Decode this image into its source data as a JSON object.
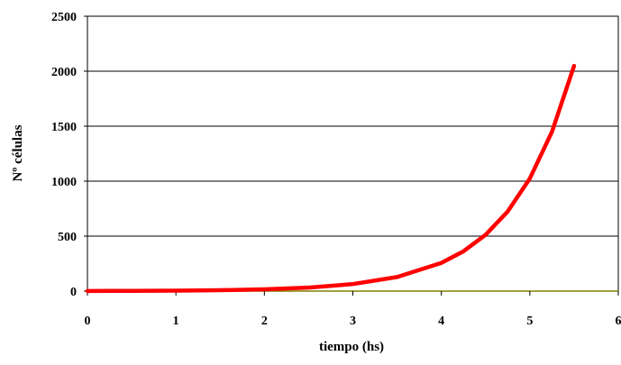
{
  "chart_data": {
    "type": "line",
    "title": "",
    "xlabel": "tiempo (hs)",
    "ylabel": "Nº células",
    "xlim": [
      0,
      6
    ],
    "ylim": [
      0,
      2500
    ],
    "x_ticks": [
      "0",
      "1",
      "2",
      "3",
      "4",
      "5",
      "6"
    ],
    "y_ticks": [
      "0",
      "500",
      "1000",
      "1500",
      "2000",
      "2500"
    ],
    "grid": "horizontal",
    "legend": "none",
    "series": [
      {
        "color": "#ff0000",
        "x": [
          0,
          0.5,
          1,
          1.5,
          2,
          2.5,
          3,
          3.5,
          4,
          4.25,
          4.5,
          4.75,
          5,
          5.25,
          5.5
        ],
        "y": [
          1,
          2,
          4,
          8,
          16,
          32,
          64,
          128,
          256,
          362,
          512,
          724,
          1024,
          1448,
          2048
        ]
      }
    ]
  }
}
